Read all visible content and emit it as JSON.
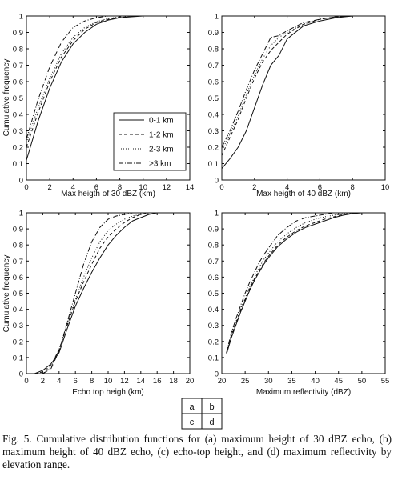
{
  "chart_data": [
    {
      "id": "a",
      "type": "line",
      "xlabel": "Max heigth of 30 dBZ (km)",
      "ylabel": "Cumulative frequency",
      "xlim": [
        0,
        14
      ],
      "ylim": [
        0,
        1
      ],
      "xticks": [
        0,
        2,
        4,
        6,
        8,
        10,
        12,
        14
      ],
      "yticks": [
        0,
        0.1,
        0.2,
        0.3,
        0.4,
        0.5,
        0.6,
        0.7,
        0.8,
        0.9,
        1
      ],
      "grid": false,
      "legend_position": "lower-right",
      "series": [
        {
          "name": "0-1 km",
          "x": [
            0,
            1,
            2,
            3,
            4,
            5,
            6,
            7,
            8,
            9,
            10,
            11,
            12
          ],
          "y": [
            0.12,
            0.36,
            0.56,
            0.72,
            0.83,
            0.9,
            0.95,
            0.975,
            0.99,
            0.995,
            1,
            1,
            1
          ]
        },
        {
          "name": "1-2 km",
          "x": [
            0,
            1,
            2,
            3,
            4,
            5,
            6,
            7,
            8,
            9,
            10,
            11,
            12
          ],
          "y": [
            0.2,
            0.41,
            0.6,
            0.75,
            0.85,
            0.92,
            0.96,
            0.98,
            0.99,
            1,
            1,
            1,
            1
          ]
        },
        {
          "name": "2-3 km",
          "x": [
            0,
            1,
            2,
            3,
            4,
            5,
            6,
            7,
            8,
            9,
            10,
            11,
            12
          ],
          "y": [
            0.23,
            0.44,
            0.62,
            0.77,
            0.87,
            0.93,
            0.965,
            0.985,
            0.995,
            1,
            1,
            1,
            1
          ]
        },
        {
          "name": ">3 km",
          "x": [
            0,
            1,
            2,
            3,
            4,
            5,
            6,
            7,
            8,
            9,
            10,
            11,
            12
          ],
          "y": [
            0.25,
            0.49,
            0.69,
            0.84,
            0.93,
            0.97,
            0.99,
            1,
            1,
            1,
            1,
            1,
            1
          ]
        }
      ]
    },
    {
      "id": "b",
      "type": "line",
      "xlabel": "Max heigth of 40 dBZ (km)",
      "ylabel": "",
      "xlim": [
        0,
        10
      ],
      "ylim": [
        0,
        1
      ],
      "xticks": [
        0,
        2,
        4,
        6,
        8,
        10
      ],
      "yticks": [
        0,
        0.1,
        0.2,
        0.3,
        0.4,
        0.5,
        0.6,
        0.7,
        0.8,
        0.9,
        1
      ],
      "grid": false,
      "series": [
        {
          "name": "0-1 km",
          "x": [
            0,
            0.5,
            1,
            1.5,
            2,
            2.5,
            3,
            3.5,
            4,
            5,
            6,
            7,
            8
          ],
          "y": [
            0.07,
            0.13,
            0.2,
            0.3,
            0.44,
            0.58,
            0.7,
            0.76,
            0.86,
            0.94,
            0.97,
            0.99,
            1
          ]
        },
        {
          "name": "1-2 km",
          "x": [
            0,
            0.5,
            1,
            1.5,
            2,
            2.5,
            3,
            3.5,
            4,
            5,
            6,
            7,
            8
          ],
          "y": [
            0.15,
            0.26,
            0.37,
            0.5,
            0.62,
            0.72,
            0.79,
            0.84,
            0.89,
            0.95,
            0.98,
            0.995,
            1
          ]
        },
        {
          "name": "2-3 km",
          "x": [
            0,
            0.5,
            1,
            1.5,
            2,
            2.5,
            3,
            3.5,
            4,
            5,
            6,
            7,
            8
          ],
          "y": [
            0.18,
            0.28,
            0.39,
            0.52,
            0.64,
            0.74,
            0.82,
            0.87,
            0.9,
            0.95,
            0.98,
            0.995,
            1
          ]
        },
        {
          "name": ">3 km",
          "x": [
            0,
            0.5,
            1,
            1.5,
            2,
            2.5,
            3,
            3.5,
            4,
            5,
            6,
            7,
            8
          ],
          "y": [
            0.2,
            0.3,
            0.42,
            0.55,
            0.67,
            0.77,
            0.87,
            0.88,
            0.91,
            0.96,
            0.98,
            0.995,
            1
          ]
        }
      ]
    },
    {
      "id": "c",
      "type": "line",
      "xlabel": "Echo top heigh (km)",
      "ylabel": "Cumulative frequency",
      "xlim": [
        0,
        20
      ],
      "ylim": [
        0,
        1
      ],
      "xticks": [
        0,
        2,
        4,
        6,
        8,
        10,
        12,
        14,
        16,
        18,
        20
      ],
      "yticks": [
        0,
        0.1,
        0.2,
        0.3,
        0.4,
        0.5,
        0.6,
        0.7,
        0.8,
        0.9,
        1
      ],
      "grid": false,
      "series": [
        {
          "name": "0-1 km",
          "x": [
            1,
            2,
            3,
            4,
            5,
            6,
            7,
            8,
            9,
            10,
            11,
            12,
            13,
            14,
            15,
            16,
            17
          ],
          "y": [
            0,
            0.02,
            0.06,
            0.13,
            0.28,
            0.42,
            0.53,
            0.63,
            0.72,
            0.8,
            0.86,
            0.91,
            0.95,
            0.97,
            0.99,
            1,
            1
          ]
        },
        {
          "name": "1-2 km",
          "x": [
            1,
            2,
            3,
            4,
            5,
            6,
            7,
            8,
            9,
            10,
            11,
            12,
            13,
            14,
            15,
            16,
            17
          ],
          "y": [
            0,
            0.01,
            0.05,
            0.15,
            0.3,
            0.45,
            0.57,
            0.68,
            0.78,
            0.85,
            0.9,
            0.94,
            0.97,
            0.99,
            1,
            1,
            1
          ]
        },
        {
          "name": "2-3 km",
          "x": [
            1,
            2,
            3,
            4,
            5,
            6,
            7,
            8,
            9,
            10,
            11,
            12,
            13,
            14,
            15,
            16,
            17
          ],
          "y": [
            0,
            0,
            0.04,
            0.15,
            0.31,
            0.46,
            0.6,
            0.72,
            0.82,
            0.89,
            0.93,
            0.96,
            0.98,
            0.99,
            1,
            1,
            1
          ]
        },
        {
          "name": ">3 km",
          "x": [
            1,
            2,
            3,
            4,
            5,
            6,
            7,
            8,
            9,
            10,
            11,
            12,
            13,
            14,
            15,
            16,
            17
          ],
          "y": [
            0,
            0,
            0.03,
            0.14,
            0.32,
            0.5,
            0.68,
            0.82,
            0.91,
            0.96,
            0.98,
            0.99,
            1,
            1,
            1,
            1,
            1
          ]
        }
      ]
    },
    {
      "id": "d",
      "type": "line",
      "xlabel": "Maximum reflectivity (dBZ)",
      "ylabel": "",
      "xlim": [
        20,
        55
      ],
      "ylim": [
        0,
        1
      ],
      "xticks": [
        20,
        25,
        30,
        35,
        40,
        45,
        50,
        55
      ],
      "yticks": [
        0,
        0.1,
        0.2,
        0.3,
        0.4,
        0.5,
        0.6,
        0.7,
        0.8,
        0.9,
        1
      ],
      "grid": false,
      "series": [
        {
          "name": "0-1 km",
          "x": [
            21,
            22,
            23,
            24,
            25,
            26,
            27,
            28,
            29,
            30,
            32,
            34,
            36,
            38,
            40,
            42,
            44,
            46,
            48,
            50
          ],
          "y": [
            0.12,
            0.22,
            0.3,
            0.38,
            0.45,
            0.52,
            0.58,
            0.63,
            0.68,
            0.72,
            0.79,
            0.84,
            0.88,
            0.91,
            0.93,
            0.95,
            0.97,
            0.985,
            0.995,
            1
          ]
        },
        {
          "name": "1-2 km",
          "x": [
            21,
            22,
            23,
            24,
            25,
            26,
            27,
            28,
            29,
            30,
            32,
            34,
            36,
            38,
            40,
            42,
            44,
            46,
            48,
            50
          ],
          "y": [
            0.12,
            0.23,
            0.31,
            0.39,
            0.46,
            0.53,
            0.59,
            0.64,
            0.69,
            0.73,
            0.8,
            0.85,
            0.89,
            0.92,
            0.94,
            0.96,
            0.975,
            0.99,
            1,
            1
          ]
        },
        {
          "name": "2-3 km",
          "x": [
            21,
            22,
            23,
            24,
            25,
            26,
            27,
            28,
            29,
            30,
            32,
            34,
            36,
            38,
            40,
            42,
            44,
            46,
            48,
            50
          ],
          "y": [
            0.13,
            0.24,
            0.32,
            0.4,
            0.47,
            0.54,
            0.6,
            0.66,
            0.71,
            0.75,
            0.82,
            0.87,
            0.91,
            0.94,
            0.96,
            0.975,
            0.985,
            0.995,
            1,
            1
          ]
        },
        {
          "name": ">3 km",
          "x": [
            21,
            22,
            23,
            24,
            25,
            26,
            27,
            28,
            29,
            30,
            32,
            34,
            36,
            38,
            40,
            42,
            44,
            46,
            48,
            50
          ],
          "y": [
            0.13,
            0.25,
            0.34,
            0.42,
            0.5,
            0.57,
            0.63,
            0.69,
            0.74,
            0.78,
            0.86,
            0.91,
            0.95,
            0.97,
            0.98,
            0.99,
            1,
            1,
            1,
            1
          ]
        }
      ]
    }
  ],
  "panel_key": [
    "a",
    "b",
    "c",
    "d"
  ],
  "caption": "Fig. 5. Cumulative distribution functions for (a) maximum height of 30 dBZ echo, (b) maximum height of 40 dBZ echo, (c) echo-top height, and (d) maximum reflectivity by elevation range."
}
